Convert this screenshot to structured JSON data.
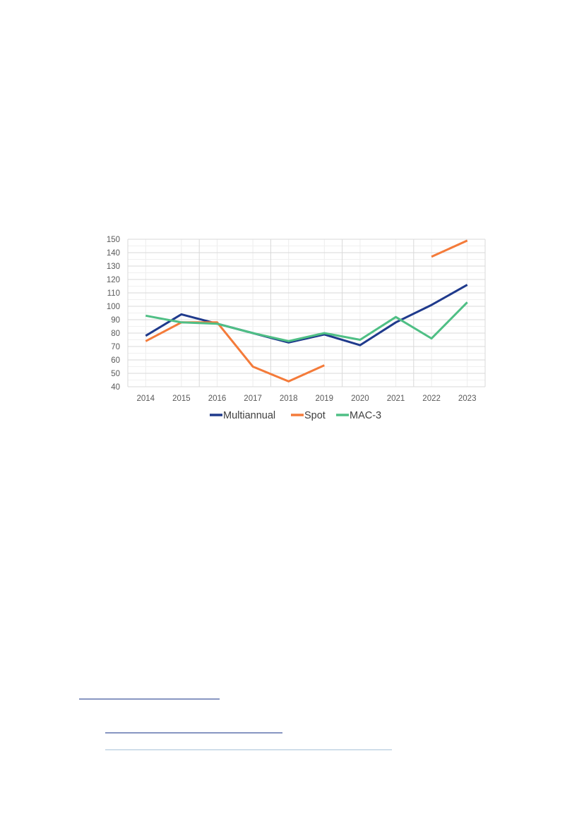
{
  "chart_data": {
    "type": "line",
    "x": [
      "2014",
      "2015",
      "2016",
      "2017",
      "2018",
      "2019",
      "2020",
      "2021",
      "2022",
      "2023"
    ],
    "series": [
      {
        "name": "Multiannual",
        "color": "#1f3a8c",
        "values": [
          78,
          94,
          87,
          80,
          73,
          79,
          71,
          88,
          101,
          116
        ]
      },
      {
        "name": "Spot",
        "color": "#f47b3a",
        "values": [
          74,
          88,
          88,
          55,
          44,
          56,
          null,
          null,
          137,
          149
        ]
      },
      {
        "name": "MAC-3",
        "color": "#4fbf85",
        "values": [
          93,
          88,
          87,
          80,
          74,
          80,
          75,
          92,
          76,
          103
        ]
      }
    ],
    "ylim": [
      40,
      150
    ],
    "yticks": [
      40,
      50,
      60,
      70,
      80,
      90,
      100,
      110,
      120,
      130,
      140,
      150
    ],
    "grid": true,
    "legend": "bottom",
    "title": "",
    "xlabel": "",
    "ylabel": ""
  },
  "footnote_colors": {
    "rule": "#1f3a8c",
    "link1": "#1f3a8c",
    "link2": "#a9c3d9"
  }
}
